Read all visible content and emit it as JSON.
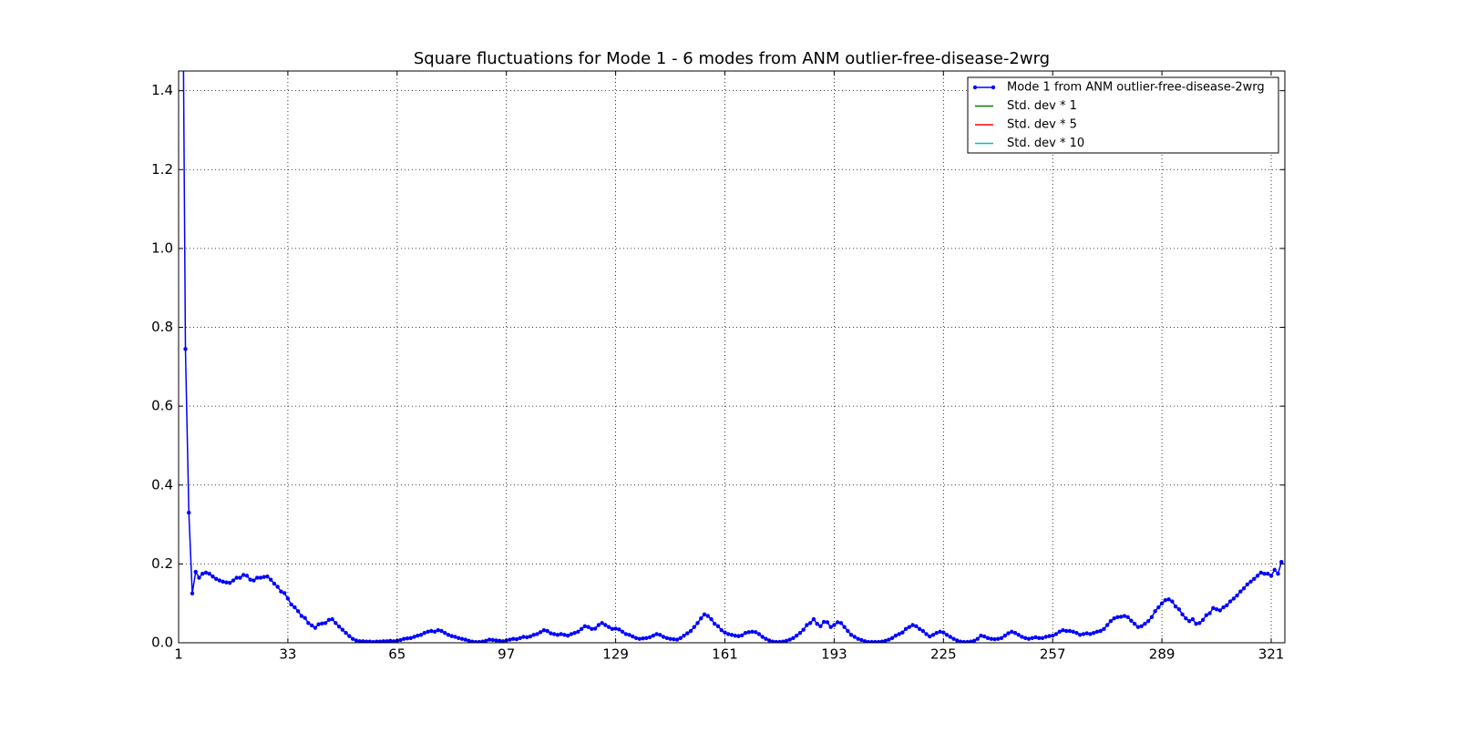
{
  "chart_data": {
    "type": "line",
    "title": "Square fluctuations for Mode 1 - 6 modes from ANM outlier-free-disease-2wrg",
    "x": [
      2,
      3,
      4,
      5,
      6,
      7,
      8,
      9,
      10,
      11,
      12,
      13,
      14,
      15,
      16,
      17,
      18,
      19,
      20,
      21,
      22,
      23,
      24,
      25,
      26,
      27,
      28,
      29,
      30,
      31,
      32,
      33,
      34,
      35,
      36,
      37,
      38,
      39,
      40,
      41,
      42,
      43,
      44,
      45,
      46,
      47,
      48,
      49,
      50,
      51,
      52,
      53,
      54,
      55,
      56,
      57,
      58,
      59,
      60,
      61,
      62,
      63,
      64,
      65,
      66,
      67,
      68,
      69,
      70,
      71,
      72,
      73,
      74,
      75,
      76,
      77,
      78,
      79,
      80,
      81,
      82,
      83,
      84,
      85,
      86,
      87,
      88,
      89,
      90,
      91,
      92,
      93,
      94,
      95,
      96,
      97,
      98,
      99,
      100,
      101,
      102,
      103,
      104,
      105,
      106,
      107,
      108,
      109,
      110,
      111,
      112,
      113,
      114,
      115,
      116,
      117,
      118,
      119,
      120,
      121,
      122,
      123,
      124,
      125,
      126,
      127,
      128,
      129,
      130,
      131,
      132,
      133,
      134,
      135,
      136,
      137,
      138,
      139,
      140,
      141,
      142,
      143,
      144,
      145,
      146,
      147,
      148,
      149,
      150,
      151,
      152,
      153,
      154,
      155,
      156,
      157,
      158,
      159,
      160,
      161,
      162,
      163,
      164,
      165,
      166,
      167,
      168,
      169,
      170,
      171,
      172,
      173,
      174,
      175,
      176,
      177,
      178,
      179,
      180,
      181,
      182,
      183,
      184,
      185,
      186,
      187,
      188,
      189,
      190,
      191,
      192,
      193,
      194,
      195,
      196,
      197,
      198,
      199,
      200,
      201,
      202,
      203,
      204,
      205,
      206,
      207,
      208,
      209,
      210,
      211,
      212,
      213,
      214,
      215,
      216,
      217,
      218,
      219,
      220,
      221,
      222,
      223,
      224,
      225,
      226,
      227,
      228,
      229,
      230,
      231,
      232,
      233,
      234,
      235,
      236,
      237,
      238,
      239,
      240,
      241,
      242,
      243,
      244,
      245,
      246,
      247,
      248,
      249,
      250,
      251,
      252,
      253,
      254,
      255,
      256,
      257,
      258,
      259,
      260,
      261,
      262,
      263,
      264,
      265,
      266,
      267,
      268,
      269,
      270,
      271,
      272,
      273,
      274,
      275,
      276,
      277,
      278,
      279,
      280,
      281,
      282,
      283,
      284,
      285,
      286,
      287,
      288,
      289,
      290,
      291,
      292,
      293,
      294,
      295,
      296,
      297,
      298,
      299,
      300,
      301,
      302,
      303,
      304,
      305,
      306,
      307,
      308,
      309,
      310,
      311,
      312,
      313,
      314,
      315,
      316,
      317,
      318,
      319,
      320,
      321,
      322,
      323,
      324
    ],
    "series": [
      {
        "name": "Mode 1 from ANM outlier-free-disease-2wrg",
        "color": "#0000ff",
        "values": [
          2.0,
          0.745,
          0.33,
          0.125,
          0.18,
          0.165,
          0.175,
          0.178,
          0.175,
          0.168,
          0.162,
          0.158,
          0.155,
          0.153,
          0.152,
          0.158,
          0.165,
          0.165,
          0.172,
          0.17,
          0.16,
          0.158,
          0.165,
          0.165,
          0.167,
          0.168,
          0.16,
          0.15,
          0.142,
          0.13,
          0.126,
          0.112,
          0.097,
          0.09,
          0.08,
          0.068,
          0.063,
          0.05,
          0.044,
          0.038,
          0.047,
          0.049,
          0.05,
          0.058,
          0.06,
          0.05,
          0.041,
          0.033,
          0.025,
          0.017,
          0.01,
          0.006,
          0.004,
          0.004,
          0.003,
          0.003,
          0.002,
          0.003,
          0.003,
          0.004,
          0.004,
          0.005,
          0.004,
          0.005,
          0.007,
          0.01,
          0.011,
          0.012,
          0.015,
          0.018,
          0.02,
          0.025,
          0.028,
          0.03,
          0.028,
          0.032,
          0.03,
          0.025,
          0.02,
          0.017,
          0.015,
          0.012,
          0.01,
          0.008,
          0.005,
          0.003,
          0.002,
          0.002,
          0.003,
          0.005,
          0.008,
          0.007,
          0.006,
          0.005,
          0.004,
          0.006,
          0.008,
          0.01,
          0.009,
          0.012,
          0.015,
          0.014,
          0.016,
          0.02,
          0.022,
          0.027,
          0.032,
          0.03,
          0.024,
          0.022,
          0.02,
          0.022,
          0.02,
          0.018,
          0.022,
          0.025,
          0.028,
          0.035,
          0.042,
          0.04,
          0.035,
          0.036,
          0.045,
          0.05,
          0.045,
          0.04,
          0.035,
          0.036,
          0.034,
          0.028,
          0.022,
          0.02,
          0.016,
          0.012,
          0.01,
          0.011,
          0.012,
          0.014,
          0.018,
          0.022,
          0.02,
          0.015,
          0.012,
          0.01,
          0.009,
          0.008,
          0.012,
          0.018,
          0.024,
          0.03,
          0.04,
          0.05,
          0.062,
          0.072,
          0.068,
          0.06,
          0.048,
          0.042,
          0.032,
          0.026,
          0.022,
          0.02,
          0.018,
          0.017,
          0.019,
          0.025,
          0.027,
          0.028,
          0.027,
          0.022,
          0.015,
          0.01,
          0.006,
          0.003,
          0.002,
          0.002,
          0.003,
          0.005,
          0.008,
          0.012,
          0.018,
          0.025,
          0.033,
          0.045,
          0.05,
          0.06,
          0.048,
          0.042,
          0.053,
          0.052,
          0.04,
          0.045,
          0.052,
          0.05,
          0.04,
          0.03,
          0.02,
          0.015,
          0.01,
          0.007,
          0.004,
          0.002,
          0.002,
          0.002,
          0.002,
          0.003,
          0.005,
          0.008,
          0.012,
          0.018,
          0.022,
          0.026,
          0.035,
          0.04,
          0.045,
          0.042,
          0.035,
          0.03,
          0.022,
          0.016,
          0.02,
          0.025,
          0.028,
          0.026,
          0.02,
          0.015,
          0.01,
          0.006,
          0.003,
          0.002,
          0.002,
          0.003,
          0.005,
          0.01,
          0.018,
          0.016,
          0.012,
          0.01,
          0.009,
          0.01,
          0.012,
          0.018,
          0.024,
          0.028,
          0.025,
          0.02,
          0.015,
          0.012,
          0.01,
          0.012,
          0.014,
          0.012,
          0.012,
          0.015,
          0.017,
          0.018,
          0.022,
          0.028,
          0.032,
          0.03,
          0.03,
          0.028,
          0.025,
          0.02,
          0.022,
          0.024,
          0.022,
          0.025,
          0.028,
          0.03,
          0.035,
          0.045,
          0.055,
          0.062,
          0.065,
          0.066,
          0.068,
          0.065,
          0.056,
          0.048,
          0.04,
          0.042,
          0.048,
          0.055,
          0.065,
          0.08,
          0.09,
          0.1,
          0.108,
          0.11,
          0.105,
          0.092,
          0.085,
          0.072,
          0.062,
          0.055,
          0.06,
          0.048,
          0.05,
          0.058,
          0.07,
          0.075,
          0.088,
          0.085,
          0.082,
          0.09,
          0.095,
          0.105,
          0.112,
          0.12,
          0.13,
          0.138,
          0.148,
          0.155,
          0.162,
          0.17,
          0.178,
          0.175,
          0.175,
          0.17,
          0.185,
          0.175,
          0.205
        ]
      },
      {
        "name": "Std. dev * 1",
        "color": "#008000"
      },
      {
        "name": "Std. dev * 5",
        "color": "#ff0000"
      },
      {
        "name": "Std. dev * 10",
        "color": "#00bfbf"
      }
    ],
    "xlim": [
      1,
      325
    ],
    "xticks": [
      1,
      33,
      65,
      97,
      129,
      161,
      193,
      225,
      257,
      289,
      321
    ],
    "ylim": [
      0,
      1.45
    ],
    "yticks": [
      {
        "value": 0,
        "label": "0.0"
      },
      0.2,
      0.4,
      0.6,
      0.8,
      {
        "value": 1,
        "label": "1.0"
      },
      1.2,
      1.4
    ],
    "grid": true,
    "legend": "upper right"
  }
}
